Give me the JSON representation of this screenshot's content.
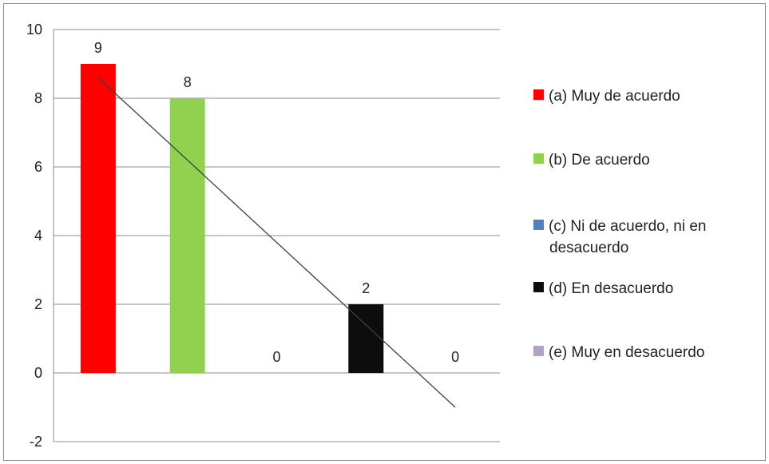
{
  "chart_data": {
    "type": "bar",
    "categories": [
      "(a)  Muy de acuerdo",
      "(b)  De acuerdo",
      "(c)  Ni de acuerdo, ni en desacuerdo",
      "(d)  En desacuerdo",
      "(e)  Muy en desacuerdo"
    ],
    "values": [
      9,
      8,
      0,
      2,
      0
    ],
    "data_labels": [
      "9",
      "8",
      "0",
      "2",
      "0"
    ],
    "colors": [
      "#ff0000",
      "#92d050",
      "#4f81bd",
      "#0d0d0d",
      "#b3a2c7"
    ],
    "ylim": [
      -2,
      10
    ],
    "yticks": [
      10,
      8,
      6,
      4,
      2,
      0,
      -2
    ],
    "grid": true,
    "legend": {
      "position": "right",
      "entries": [
        {
          "lines": [
            "(a)  Muy de acuerdo"
          ],
          "color": "#ff0000"
        },
        {
          "lines": [
            "(b)  De acuerdo"
          ],
          "color": "#92d050"
        },
        {
          "lines": [
            "(c)  Ni de acuerdo, ni en",
            "desacuerdo"
          ],
          "color": "#4f81bd"
        },
        {
          "lines": [
            "(d)  En desacuerdo"
          ],
          "color": "#0d0d0d"
        },
        {
          "lines": [
            "(e)  Muy en desacuerdo"
          ],
          "color": "#b3a2c7"
        }
      ]
    },
    "trendline": {
      "type": "linear",
      "color": "#404040"
    }
  }
}
